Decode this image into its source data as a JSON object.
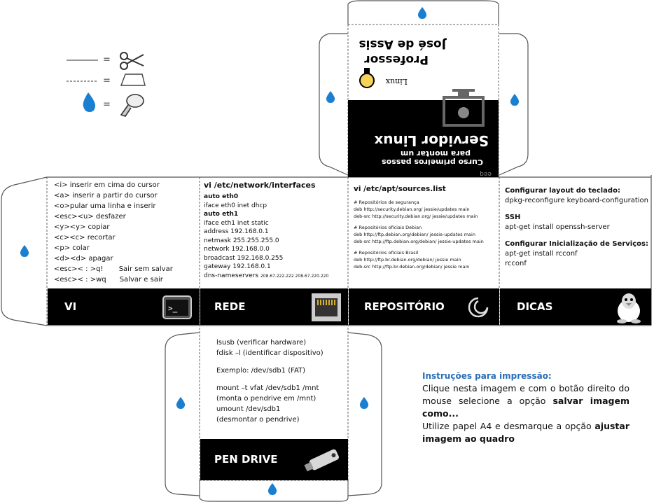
{
  "legend": {
    "eq1": "=",
    "eq2": "=",
    "eq3": "="
  },
  "cover": {
    "brand": "Linux",
    "title_line1": "Professor",
    "title_line2": "José de Assis",
    "heading1": "Servidor Linux",
    "heading2": "para montar um",
    "heading3": "Curso primeiros passos",
    "footer_tag": "eeq"
  },
  "vi": {
    "bar_label": "VI",
    "lines": [
      "<i> inserir em cima do cursor",
      "<a> inserir a partir do cursor",
      "<o>pular uma linha e inserir",
      "<esc><u> desfazer",
      "<y><y> copiar",
      "<c><c> recortar",
      "<p> colar",
      "<d><d> apagar",
      "<esc>< : >q!       Sair sem salvar",
      "<esc>< : >wq      Salvar e sair"
    ]
  },
  "rede": {
    "bar_label": "REDE",
    "heading": "vi /etc/network/interfaces",
    "lines": [
      {
        "t": "auto eth0",
        "b": true
      },
      {
        "t": "iface eth0 inet dhcp",
        "b": false
      },
      {
        "t": "auto eth1",
        "b": true
      },
      {
        "t": "iface eth1 inet static",
        "b": false
      },
      {
        "t": "address 192.168.0.1",
        "b": false
      },
      {
        "t": "netmask 255.255.255.0",
        "b": false
      },
      {
        "t": "network 192.168.0.0",
        "b": false
      },
      {
        "t": "broadcast 192.168.0.255",
        "b": false
      },
      {
        "t": "gateway 192.168.0.1",
        "b": false
      }
    ],
    "dns_label": "dns-nameservers",
    "dns_value": "208.67.222.222 208.67.220.220"
  },
  "repositorio": {
    "bar_label": "REPOSITÓRIO",
    "heading": "vi /etc/apt/sources.list",
    "groups": [
      {
        "title": "# Repositórios de segurança",
        "lines": [
          "deb http://security.debian.org/ jessie/updates main",
          "deb-src http://security.debian.org/ jessie/updates main"
        ]
      },
      {
        "title": "# Repositórios oficiais Debian",
        "lines": [
          "deb http://ftp.debian.org/debian/ jessie-updates main",
          "deb-src http://ftp.debian.org/debian/ jessie-updates main"
        ]
      },
      {
        "title": "# Repositórios oficiais Brasil",
        "lines": [
          "deb http://ftp.br.debian.org/debian/ jessie main",
          "deb-src http://ftp.br.debian.org/debian/ jessie main"
        ]
      }
    ]
  },
  "dicas": {
    "bar_label": "DICAS",
    "sections": [
      {
        "title": "Configurar  layout do teclado:",
        "lines": [
          "dpkg-reconfigure keyboard-configuration"
        ]
      },
      {
        "title": "SSH",
        "lines": [
          "apt-get install openssh-server"
        ]
      },
      {
        "title": "Configurar  Inicialização de Serviços:",
        "lines": [
          "apt-get install rcconf",
          "rcconf"
        ]
      }
    ]
  },
  "pendrive": {
    "bar_label": "PEN DRIVE",
    "lines": [
      "lsusb (verificar hardware)",
      "fdisk –l (identificar dispositivo)",
      "",
      "Exemplo:  /dev/sdb1 (FAT)",
      "",
      "mount –t vfat /dev/sdb1 /mnt",
      "(monta o pendrive em /mnt)",
      "umount /dev/sdb1",
      "(desmontar o pendrive)"
    ]
  },
  "instrucoes": {
    "title": "Instruções para impressão:",
    "p1_a": "Clique nesta imagem e com o botão direito do mouse selecione a opção ",
    "p1_b": "salvar imagem como...",
    "p2_a": "Utilize papel A4 e desmarque a opção ",
    "p2_b": "ajustar imagem ao quadro"
  },
  "colors": {
    "drop": "#1a7fd0",
    "bar": "#000000",
    "instr_title": "#2a6fb5"
  }
}
